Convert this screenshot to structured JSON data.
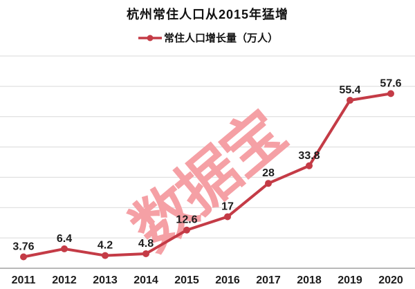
{
  "title": "杭州常住人口从2015年猛增",
  "watermark": "数据宝",
  "legend": {
    "label": "常住人口增长量（万人）"
  },
  "colors": {
    "line": "#c43b46",
    "label": "#1c1c1c",
    "title": "#111111",
    "grid": "#d9d9d9",
    "axis": "#a0a0a0",
    "watermark": "#f5a0a5"
  },
  "chart_data": {
    "type": "line",
    "categories": [
      "2011",
      "2012",
      "2013",
      "2014",
      "2015",
      "2016",
      "2017",
      "2018",
      "2019",
      "2020"
    ],
    "series": [
      {
        "name": "常住人口增长量（万人）",
        "values": [
          3.76,
          6.4,
          4.2,
          4.8,
          12.6,
          17,
          28,
          33.8,
          55.4,
          57.6
        ]
      }
    ],
    "point_labels": [
      "3.76",
      "6.4",
      "4.2",
      "4.8",
      "12.6",
      "17",
      "28",
      "33.8",
      "55.4",
      "57.6"
    ],
    "title": "杭州常住人口从2015年猛增",
    "xlabel": "",
    "ylabel": "",
    "ylim": [
      0,
      70
    ],
    "grid": "horizontal",
    "grid_step": 10,
    "legend_position": "top",
    "annotations": [
      "数据宝"
    ]
  }
}
